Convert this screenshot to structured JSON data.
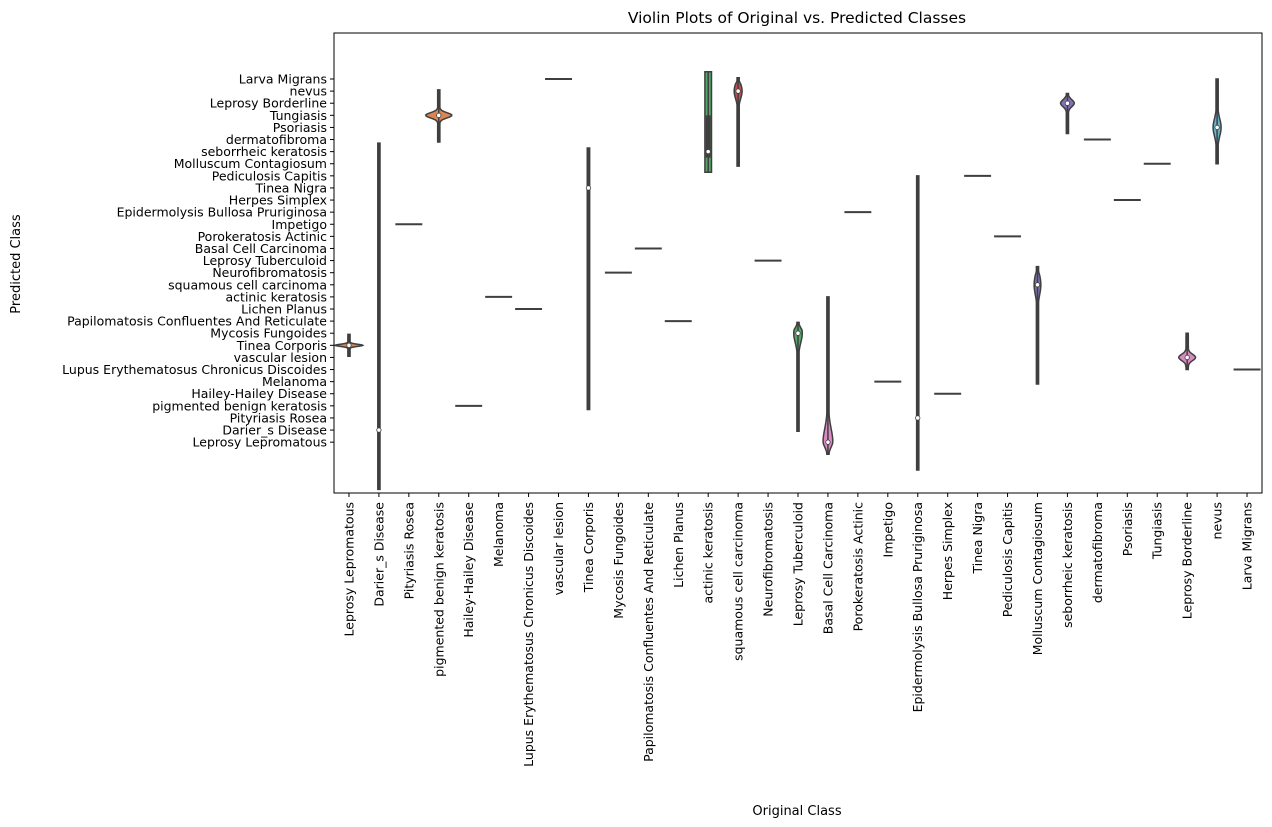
{
  "chart_data": {
    "type": "violin",
    "title": "Violin Plots of Original vs. Predicted Classes",
    "xlabel": "Original Class",
    "ylabel": "Predicted Class",
    "x_categories": [
      "Leprosy Lepromatous",
      "Darier_s Disease",
      "Pityriasis Rosea",
      "pigmented benign keratosis",
      "Hailey-Hailey Disease",
      "Melanoma",
      "Lupus Erythematosus Chronicus Discoides",
      "vascular lesion",
      "Tinea Corporis",
      "Mycosis Fungoides",
      "Papilomatosis Confluentes And Reticulate",
      "Lichen Planus",
      "actinic keratosis",
      "squamous cell carcinoma",
      "Neurofibromatosis",
      "Leprosy Tuberculoid",
      "Basal Cell Carcinoma",
      "Porokeratosis Actinic",
      "Impetigo",
      "Epidermolysis Bullosa Pruriginosa",
      "Herpes Simplex",
      "Tinea Nigra",
      "Pediculosis Capitis",
      "Molluscum Contagiosum",
      "seborrheic keratosis",
      "dermatofibroma",
      "Psoriasis",
      "Tungiasis",
      "Leprosy Borderline",
      "nevus",
      "Larva Migrans"
    ],
    "y_categories": [
      "Larva Migrans",
      "nevus",
      "Leprosy Borderline",
      "Tungiasis",
      "Psoriasis",
      "dermatofibroma",
      "seborrheic keratosis",
      "Molluscum Contagiosum",
      "Pediculosis Capitis",
      "Tinea Nigra",
      "Herpes Simplex",
      "Epidermolysis Bullosa Pruriginosa",
      "Impetigo",
      "Porokeratosis Actinic",
      "Basal Cell Carcinoma",
      "Leprosy Tuberculoid",
      "Neurofibromatosis",
      "squamous cell carcinoma",
      "actinic keratosis",
      "Lichen Planus",
      "Papilomatosis Confluentes And Reticulate",
      "Mycosis Fungoides",
      "Tinea Corporis",
      "vascular lesion",
      "Lupus Erythematosus Chronicus Discoides",
      "Melanoma",
      "Hailey-Hailey Disease",
      "pigmented benign keratosis",
      "Pityriasis Rosea",
      "Darier_s Disease",
      "Leprosy Lepromatous"
    ],
    "ylim": [
      -3.8,
      34.2
    ],
    "y_inverted": true,
    "violins": [
      {
        "x": 0,
        "ymin": 21.1,
        "ymax": 22.9,
        "median": 22.0,
        "q1": 22.0,
        "q3": 22.0,
        "maxwidth": 0.9,
        "color": "#dd8452",
        "profile": "peak"
      },
      {
        "x": 1,
        "ymin": 5.3,
        "ymax": 33.9,
        "median": 29.0,
        "q1": 29.0,
        "q3": 29.0,
        "maxwidth": 0.05,
        "color": "#c44e52",
        "profile": "flat"
      },
      {
        "x": 2,
        "ymin": 12.0,
        "ymax": 12.0,
        "median": 12.0,
        "q1": 12.0,
        "q3": 12.0,
        "maxwidth": 0.9,
        "color": "#55a868",
        "profile": "flat"
      },
      {
        "x": 3,
        "ymin": 0.9,
        "ymax": 5.2,
        "median": 3.0,
        "q1": 3.0,
        "q3": 3.0,
        "maxwidth": 0.85,
        "color": "#dd8452",
        "profile": "peak"
      },
      {
        "x": 4,
        "ymin": 27.0,
        "ymax": 27.0,
        "median": 27.0,
        "q1": 27.0,
        "q3": 27.0,
        "maxwidth": 0.9,
        "color": "#8172b3",
        "profile": "flat"
      },
      {
        "x": 5,
        "ymin": 18.0,
        "ymax": 18.0,
        "median": 18.0,
        "q1": 18.0,
        "q3": 18.0,
        "maxwidth": 0.9,
        "color": "#937860",
        "profile": "flat"
      },
      {
        "x": 6,
        "ymin": 19.0,
        "ymax": 19.0,
        "median": 19.0,
        "q1": 19.0,
        "q3": 19.0,
        "maxwidth": 0.9,
        "color": "#da8bc3",
        "profile": "flat"
      },
      {
        "x": 7,
        "ymin": 0.0,
        "ymax": 0.0,
        "median": 0.0,
        "q1": 0.0,
        "q3": 0.0,
        "maxwidth": 0.9,
        "color": "#8c8c8c",
        "profile": "flat"
      },
      {
        "x": 8,
        "ymin": 5.7,
        "ymax": 27.3,
        "median": 9.0,
        "q1": 9.0,
        "q3": 9.0,
        "maxwidth": 0.08,
        "color": "#ccb974",
        "profile": "flat"
      },
      {
        "x": 9,
        "ymin": 16.0,
        "ymax": 16.0,
        "median": 16.0,
        "q1": 16.0,
        "q3": 16.0,
        "maxwidth": 0.9,
        "color": "#64b5cd",
        "profile": "flat"
      },
      {
        "x": 10,
        "ymin": 14.0,
        "ymax": 14.0,
        "median": 14.0,
        "q1": 14.0,
        "q3": 14.0,
        "maxwidth": 0.9,
        "color": "#4c72b0",
        "profile": "flat"
      },
      {
        "x": 11,
        "ymin": 20.0,
        "ymax": 20.0,
        "median": 20.0,
        "q1": 20.0,
        "q3": 20.0,
        "maxwidth": 0.9,
        "color": "#dd8452",
        "profile": "flat"
      },
      {
        "x": 12,
        "ymin": -0.6,
        "ymax": 7.7,
        "median": 6.0,
        "q1": 3.0,
        "q3": 6.5,
        "maxwidth": 0.22,
        "color": "#55a868",
        "profile": "flat"
      },
      {
        "x": 13,
        "ymin": -0.1,
        "ymax": 7.2,
        "median": 1.0,
        "q1": 1.0,
        "q3": 1.0,
        "maxwidth": 0.26,
        "color": "#c44e52",
        "profile": "top"
      },
      {
        "x": 14,
        "ymin": 15.0,
        "ymax": 15.0,
        "median": 15.0,
        "q1": 15.0,
        "q3": 15.0,
        "maxwidth": 0.9,
        "color": "#8172b3",
        "profile": "flat"
      },
      {
        "x": 15,
        "ymin": 20.1,
        "ymax": 29.1,
        "median": 21.0,
        "q1": 21.0,
        "q3": 21.0,
        "maxwidth": 0.28,
        "color": "#55a868",
        "profile": "topbulge"
      },
      {
        "x": 16,
        "ymin": 18.0,
        "ymax": 31.0,
        "median": 30.0,
        "q1": 30.0,
        "q3": 30.0,
        "maxwidth": 0.32,
        "color": "#da8bc3",
        "profile": "bottombulge"
      },
      {
        "x": 17,
        "ymin": 11.0,
        "ymax": 11.0,
        "median": 11.0,
        "q1": 11.0,
        "q3": 11.0,
        "maxwidth": 0.9,
        "color": "#8c8c8c",
        "profile": "flat"
      },
      {
        "x": 18,
        "ymin": 25.0,
        "ymax": 25.0,
        "median": 25.0,
        "q1": 25.0,
        "q3": 25.0,
        "maxwidth": 0.9,
        "color": "#ccb974",
        "profile": "flat"
      },
      {
        "x": 19,
        "ymin": 8.0,
        "ymax": 32.3,
        "median": 28.0,
        "q1": 28.0,
        "q3": 28.0,
        "maxwidth": 0.05,
        "color": "#64b5cd",
        "profile": "flat"
      },
      {
        "x": 20,
        "ymin": 26.0,
        "ymax": 26.0,
        "median": 26.0,
        "q1": 26.0,
        "q3": 26.0,
        "maxwidth": 0.9,
        "color": "#4c72b0",
        "profile": "flat"
      },
      {
        "x": 21,
        "ymin": 8.0,
        "ymax": 8.0,
        "median": 8.0,
        "q1": 8.0,
        "q3": 8.0,
        "maxwidth": 0.9,
        "color": "#dd8452",
        "profile": "flat"
      },
      {
        "x": 22,
        "ymin": 13.0,
        "ymax": 13.0,
        "median": 13.0,
        "q1": 13.0,
        "q3": 13.0,
        "maxwidth": 0.9,
        "color": "#55a868",
        "profile": "flat"
      },
      {
        "x": 23,
        "ymin": 15.5,
        "ymax": 25.2,
        "median": 17.0,
        "q1": 17.0,
        "q3": 17.0,
        "maxwidth": 0.22,
        "color": "#8172b3",
        "profile": "top"
      },
      {
        "x": 24,
        "ymin": 1.2,
        "ymax": 4.5,
        "median": 2.0,
        "q1": 2.0,
        "q3": 2.0,
        "maxwidth": 0.45,
        "color": "#8172b3",
        "profile": "topbulge"
      },
      {
        "x": 25,
        "ymin": 5.0,
        "ymax": 5.0,
        "median": 5.0,
        "q1": 5.0,
        "q3": 5.0,
        "maxwidth": 0.9,
        "color": "#937860",
        "profile": "flat"
      },
      {
        "x": 26,
        "ymin": 10.0,
        "ymax": 10.0,
        "median": 10.0,
        "q1": 10.0,
        "q3": 10.0,
        "maxwidth": 0.9,
        "color": "#da8bc3",
        "profile": "flat"
      },
      {
        "x": 27,
        "ymin": 7.0,
        "ymax": 7.0,
        "median": 7.0,
        "q1": 7.0,
        "q3": 7.0,
        "maxwidth": 0.9,
        "color": "#8c8c8c",
        "profile": "flat"
      },
      {
        "x": 28,
        "ymin": 21.0,
        "ymax": 24.0,
        "median": 23.0,
        "q1": 23.0,
        "q3": 23.0,
        "maxwidth": 0.55,
        "color": "#da8bc3",
        "profile": "bottombulge"
      },
      {
        "x": 29,
        "ymin": 0.0,
        "ymax": 7.0,
        "median": 4.0,
        "q1": 4.0,
        "q3": 4.0,
        "maxwidth": 0.26,
        "color": "#64b5cd",
        "profile": "mid"
      },
      {
        "x": 30,
        "ymin": 24.0,
        "ymax": 24.0,
        "median": 24.0,
        "q1": 24.0,
        "q3": 24.0,
        "maxwidth": 0.9,
        "color": "#4c72b0",
        "profile": "flat"
      }
    ]
  }
}
